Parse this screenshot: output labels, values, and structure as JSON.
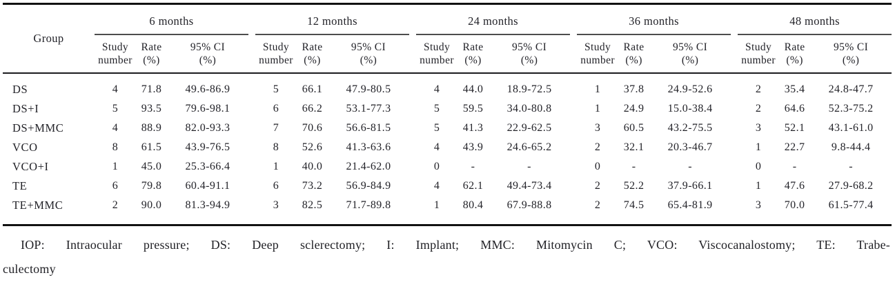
{
  "table": {
    "group_header": "Group",
    "months": [
      "6 months",
      "12 months",
      "24 months",
      "36 months",
      "48 months"
    ],
    "sub_headers": [
      {
        "key": "study-number",
        "line1": "Study",
        "line2": "number"
      },
      {
        "key": "rate",
        "line1": "Rate",
        "line2": "(%)"
      },
      {
        "key": "ci",
        "line1": "95% CI",
        "line2": "(%)"
      }
    ],
    "rows": [
      {
        "group": "DS",
        "values": [
          "4",
          "71.8",
          "49.6-86.9",
          "5",
          "66.1",
          "47.9-80.5",
          "4",
          "44.0",
          "18.9-72.5",
          "1",
          "37.8",
          "24.9-52.6",
          "2",
          "35.4",
          "24.8-47.7"
        ]
      },
      {
        "group": "DS+I",
        "values": [
          "5",
          "93.5",
          "79.6-98.1",
          "6",
          "66.2",
          "53.1-77.3",
          "5",
          "59.5",
          "34.0-80.8",
          "1",
          "24.9",
          "15.0-38.4",
          "2",
          "64.6",
          "52.3-75.2"
        ]
      },
      {
        "group": "DS+MMC",
        "values": [
          "4",
          "88.9",
          "82.0-93.3",
          "7",
          "70.6",
          "56.6-81.5",
          "5",
          "41.3",
          "22.9-62.5",
          "3",
          "60.5",
          "43.2-75.5",
          "3",
          "52.1",
          "43.1-61.0"
        ]
      },
      {
        "group": "VCO",
        "values": [
          "8",
          "61.5",
          "43.9-76.5",
          "8",
          "52.6",
          "41.3-63.6",
          "4",
          "43.9",
          "24.6-65.2",
          "2",
          "32.1",
          "20.3-46.7",
          "1",
          "22.7",
          "9.8-44.4"
        ]
      },
      {
        "group": "VCO+I",
        "values": [
          "1",
          "45.0",
          "25.3-66.4",
          "1",
          "40.0",
          "21.4-62.0",
          "0",
          "-",
          "-",
          "0",
          "-",
          "-",
          "0",
          "-",
          "-"
        ]
      },
      {
        "group": "TE",
        "values": [
          "6",
          "79.8",
          "60.4-91.1",
          "6",
          "73.2",
          "56.9-84.9",
          "4",
          "62.1",
          "49.4-73.4",
          "2",
          "52.2",
          "37.9-66.1",
          "1",
          "47.6",
          "27.9-68.2"
        ]
      },
      {
        "group": "TE+MMC",
        "values": [
          "2",
          "90.0",
          "81.3-94.9",
          "3",
          "82.5",
          "71.7-89.8",
          "1",
          "80.4",
          "67.9-88.8",
          "2",
          "74.5",
          "65.4-81.9",
          "3",
          "70.0",
          "61.5-77.4"
        ]
      }
    ]
  },
  "footnote": {
    "line1": "IOP: Intraocular pressure; DS: Deep sclerectomy; I: Implant; MMC: Mitomycin C; VCO: Viscocanalostomy; TE: Trabe-",
    "line2": "culectomy"
  },
  "colors": {
    "background": "#ffffff",
    "text": "#232329",
    "heavy_rule": "#121212",
    "header_rule": "#1b1b1e",
    "month_underline": "#4d4d4d"
  }
}
